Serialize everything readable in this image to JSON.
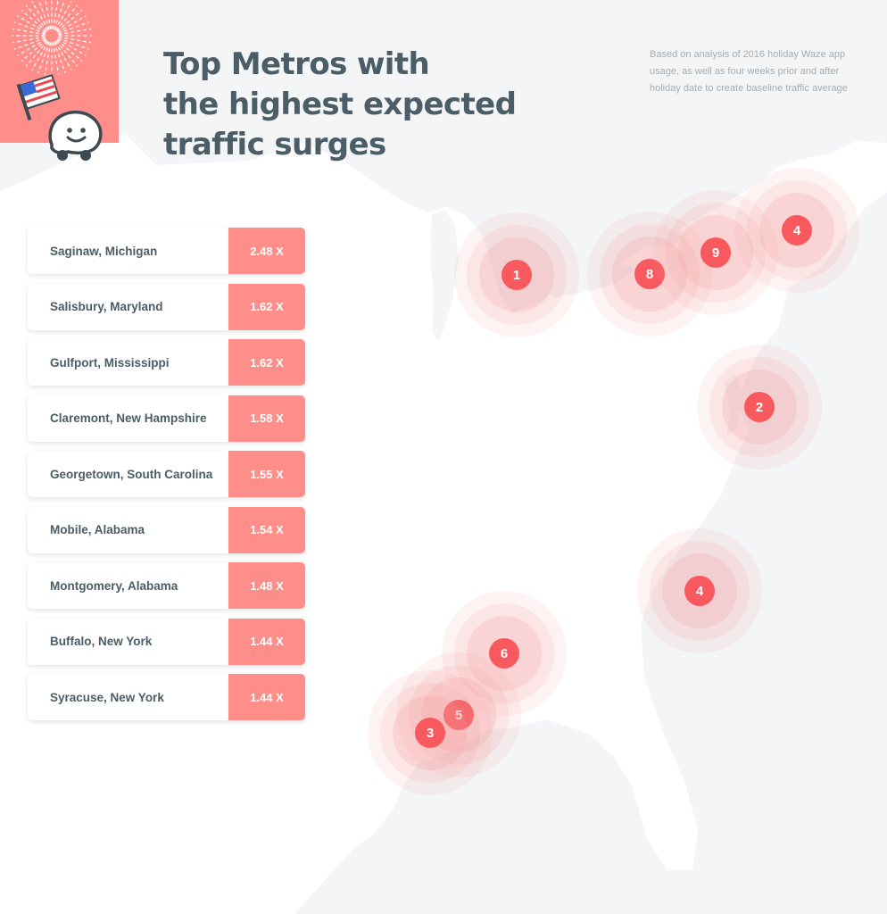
{
  "header": {
    "title_lines": [
      "Top Metros with",
      "the highest expected",
      "traffic surges"
    ],
    "note_lines": [
      "Based on analysis of 2016 holiday Waze app",
      "usage, as well as four weeks prior and after",
      "holiday date to create baseline traffic average"
    ]
  },
  "decor": {
    "corner_icons": [
      "fireworks-icon",
      "us-flag-icon",
      "waze-mascot-icon"
    ],
    "colors": {
      "accent": "#ff8e8b",
      "marker": "#f7595e",
      "text": "#4b5d66",
      "map_land": "#ffffff",
      "map_water": "#f3f5f7"
    }
  },
  "ranking": [
    {
      "city": "Saginaw, Michigan",
      "multiplier": "2.48 X"
    },
    {
      "city": "Salisbury, Maryland",
      "multiplier": "1.62 X"
    },
    {
      "city": "Gulfport, Mississippi",
      "multiplier": "1.62 X"
    },
    {
      "city": "Claremont, New Hampshire",
      "multiplier": "1.58 X"
    },
    {
      "city": "Georgetown, South Carolina",
      "multiplier": "1.55 X"
    },
    {
      "city": "Mobile, Alabama",
      "multiplier": "1.54 X"
    },
    {
      "city": "Montgomery, Alabama",
      "multiplier": "1.48 X"
    },
    {
      "city": "Buffalo, New York",
      "multiplier": "1.44 X"
    },
    {
      "city": "Syracuse, New York",
      "multiplier": "1.44 X"
    }
  ],
  "map_markers": [
    "1",
    "8",
    "9",
    "4",
    "2",
    "4",
    "6",
    "5",
    "3"
  ]
}
